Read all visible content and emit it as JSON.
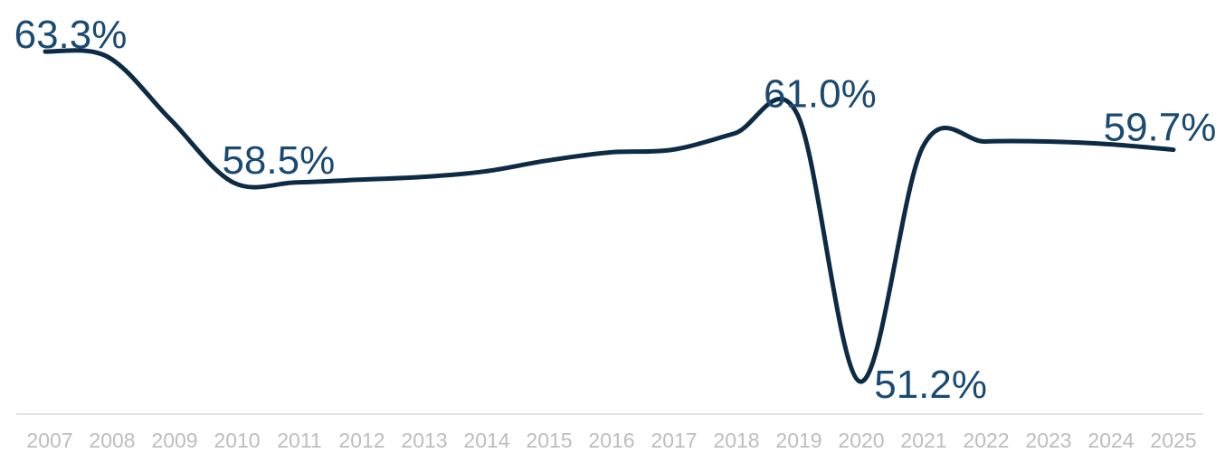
{
  "chart_data": {
    "type": "line",
    "title": "",
    "xlabel": "",
    "ylabel": "",
    "x": [
      "2007",
      "2008",
      "2009",
      "2010",
      "2011",
      "2012",
      "2013",
      "2014",
      "2015",
      "2016",
      "2017",
      "2018",
      "2019",
      "2020",
      "2021",
      "2022",
      "2023",
      "2024",
      "2025"
    ],
    "series": [
      {
        "values": [
          63.3,
          63.1,
          60.8,
          58.5,
          58.5,
          58.6,
          58.7,
          58.9,
          59.3,
          59.6,
          59.7,
          60.3,
          61.0,
          51.2,
          59.8,
          60.0,
          60.0,
          59.9,
          59.7
        ]
      }
    ],
    "data_labels": [
      {
        "index": 0,
        "text": "63.3%"
      },
      {
        "index": 3,
        "text": "58.5%"
      },
      {
        "index": 12,
        "text": "61.0%"
      },
      {
        "index": 13,
        "text": "51.2%"
      },
      {
        "index": 18,
        "text": "59.7%"
      }
    ],
    "ylim": [
      51.2,
      63.3
    ],
    "grid": false,
    "legend": "none",
    "colors": {
      "line": "#0d2b45",
      "label": "#1a4a72",
      "tick": "#bdbdbd",
      "axis": "#d9d9d9"
    }
  }
}
